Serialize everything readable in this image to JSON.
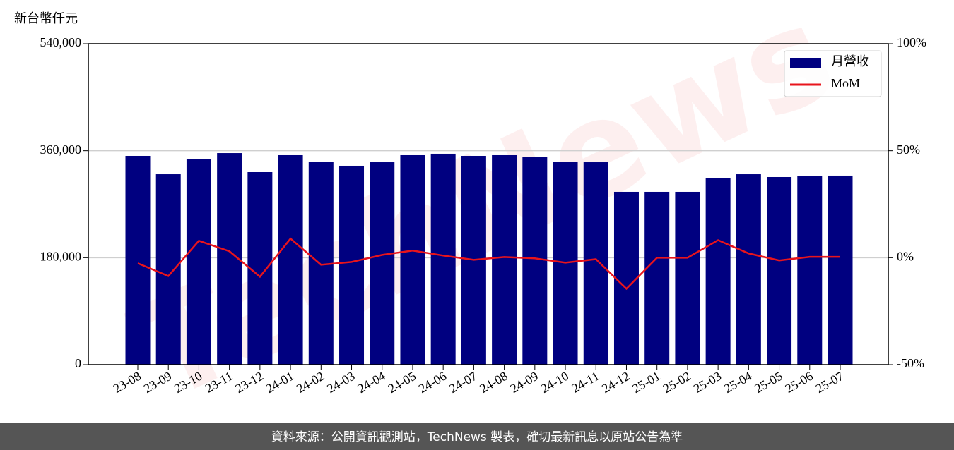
{
  "chart_data": {
    "type": "bar",
    "ylabel": "新台幣仟元",
    "categories": [
      "23-08",
      "23-09",
      "23-10",
      "23-11",
      "23-12",
      "24-01",
      "24-02",
      "24-03",
      "24-04",
      "24-05",
      "24-06",
      "24-07",
      "24-08",
      "24-09",
      "24-10",
      "24-11",
      "24-12",
      "25-01",
      "25-02",
      "25-03",
      "25-04",
      "25-05",
      "25-06",
      "25-07"
    ],
    "series": [
      {
        "name": "月營收",
        "type": "bar",
        "color": "#000080",
        "axis": "y",
        "values": [
          351300,
          320400,
          346500,
          356000,
          324000,
          352500,
          341800,
          334700,
          340600,
          352500,
          354900,
          351300,
          352500,
          350100,
          341800,
          340600,
          290800,
          290800,
          290800,
          314500,
          320400,
          315700,
          316900,
          318100
        ]
      },
      {
        "name": "MoM",
        "type": "line",
        "color": "#e8141c",
        "axis": "y2",
        "values": [
          -2.6,
          -8.6,
          7.9,
          3.0,
          -8.9,
          8.9,
          -3.3,
          -2.0,
          1.3,
          3.3,
          1.0,
          -1.0,
          0.3,
          -0.3,
          -2.3,
          -0.7,
          -14.5,
          0,
          0,
          8.2,
          2.0,
          -1.3,
          0.4,
          0.4
        ]
      }
    ],
    "ylim": [
      0,
      540000
    ],
    "yticks": [
      0,
      {
        "value": 180000,
        "label": "180,000"
      },
      {
        "value": 360000,
        "label": "360,000"
      },
      {
        "value": 540000,
        "label": "540,000"
      }
    ],
    "y2lim": [
      -50,
      100
    ],
    "y2ticks": [
      {
        "value": -50,
        "label": "-50%"
      },
      {
        "value": 0,
        "label": "0%"
      },
      {
        "value": 50,
        "label": "50%"
      },
      {
        "value": 100,
        "label": "100%"
      }
    ],
    "grid": true,
    "legend": "upper right"
  },
  "watermark": "TechNews",
  "footer": "資料來源：公開資訊觀測站，TechNews 製表，確切最新訊息以原站公告為準"
}
